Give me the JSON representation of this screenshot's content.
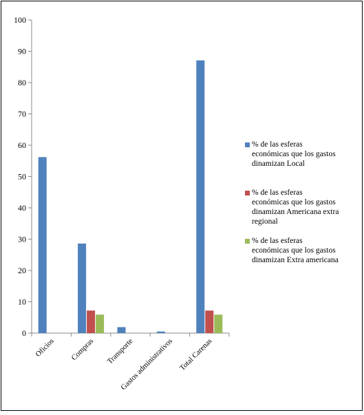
{
  "chart_data": {
    "type": "bar",
    "title": "",
    "xlabel": "",
    "ylabel": "",
    "ylim": [
      0,
      100
    ],
    "ytick_step": 10,
    "grid": false,
    "legend_placement": "right",
    "categories": [
      "Oficios",
      "Compras",
      "Transporte",
      "Gastos administrativos",
      "Total Carenas"
    ],
    "series": [
      {
        "name": "% de las esferas económicas que los gastos dinamizan Local",
        "color": "#4F81BD",
        "legend_lines": [
          "% de las esferas",
          "económicas que los gastos",
          "dinamizan Local"
        ],
        "values": [
          56.2,
          28.6,
          1.9,
          0.5,
          87.1
        ]
      },
      {
        "name": "% de las esferas económicas que los gastos dinamizan Americana extra regional",
        "color": "#C0504D",
        "legend_lines": [
          "% de las esferas",
          "económicas que los gastos",
          "dinamizan Americana extra",
          "regional"
        ],
        "values": [
          0,
          7.2,
          0,
          0,
          7.2
        ]
      },
      {
        "name": "% de las esferas económicas que los gastos dinamizan Extra americana",
        "color": "#9BBB59",
        "legend_lines": [
          "% de las esferas",
          "económicas que los gastos",
          "dinamizan Extra americana"
        ],
        "values": [
          0,
          5.9,
          0,
          0,
          5.9
        ]
      }
    ]
  }
}
